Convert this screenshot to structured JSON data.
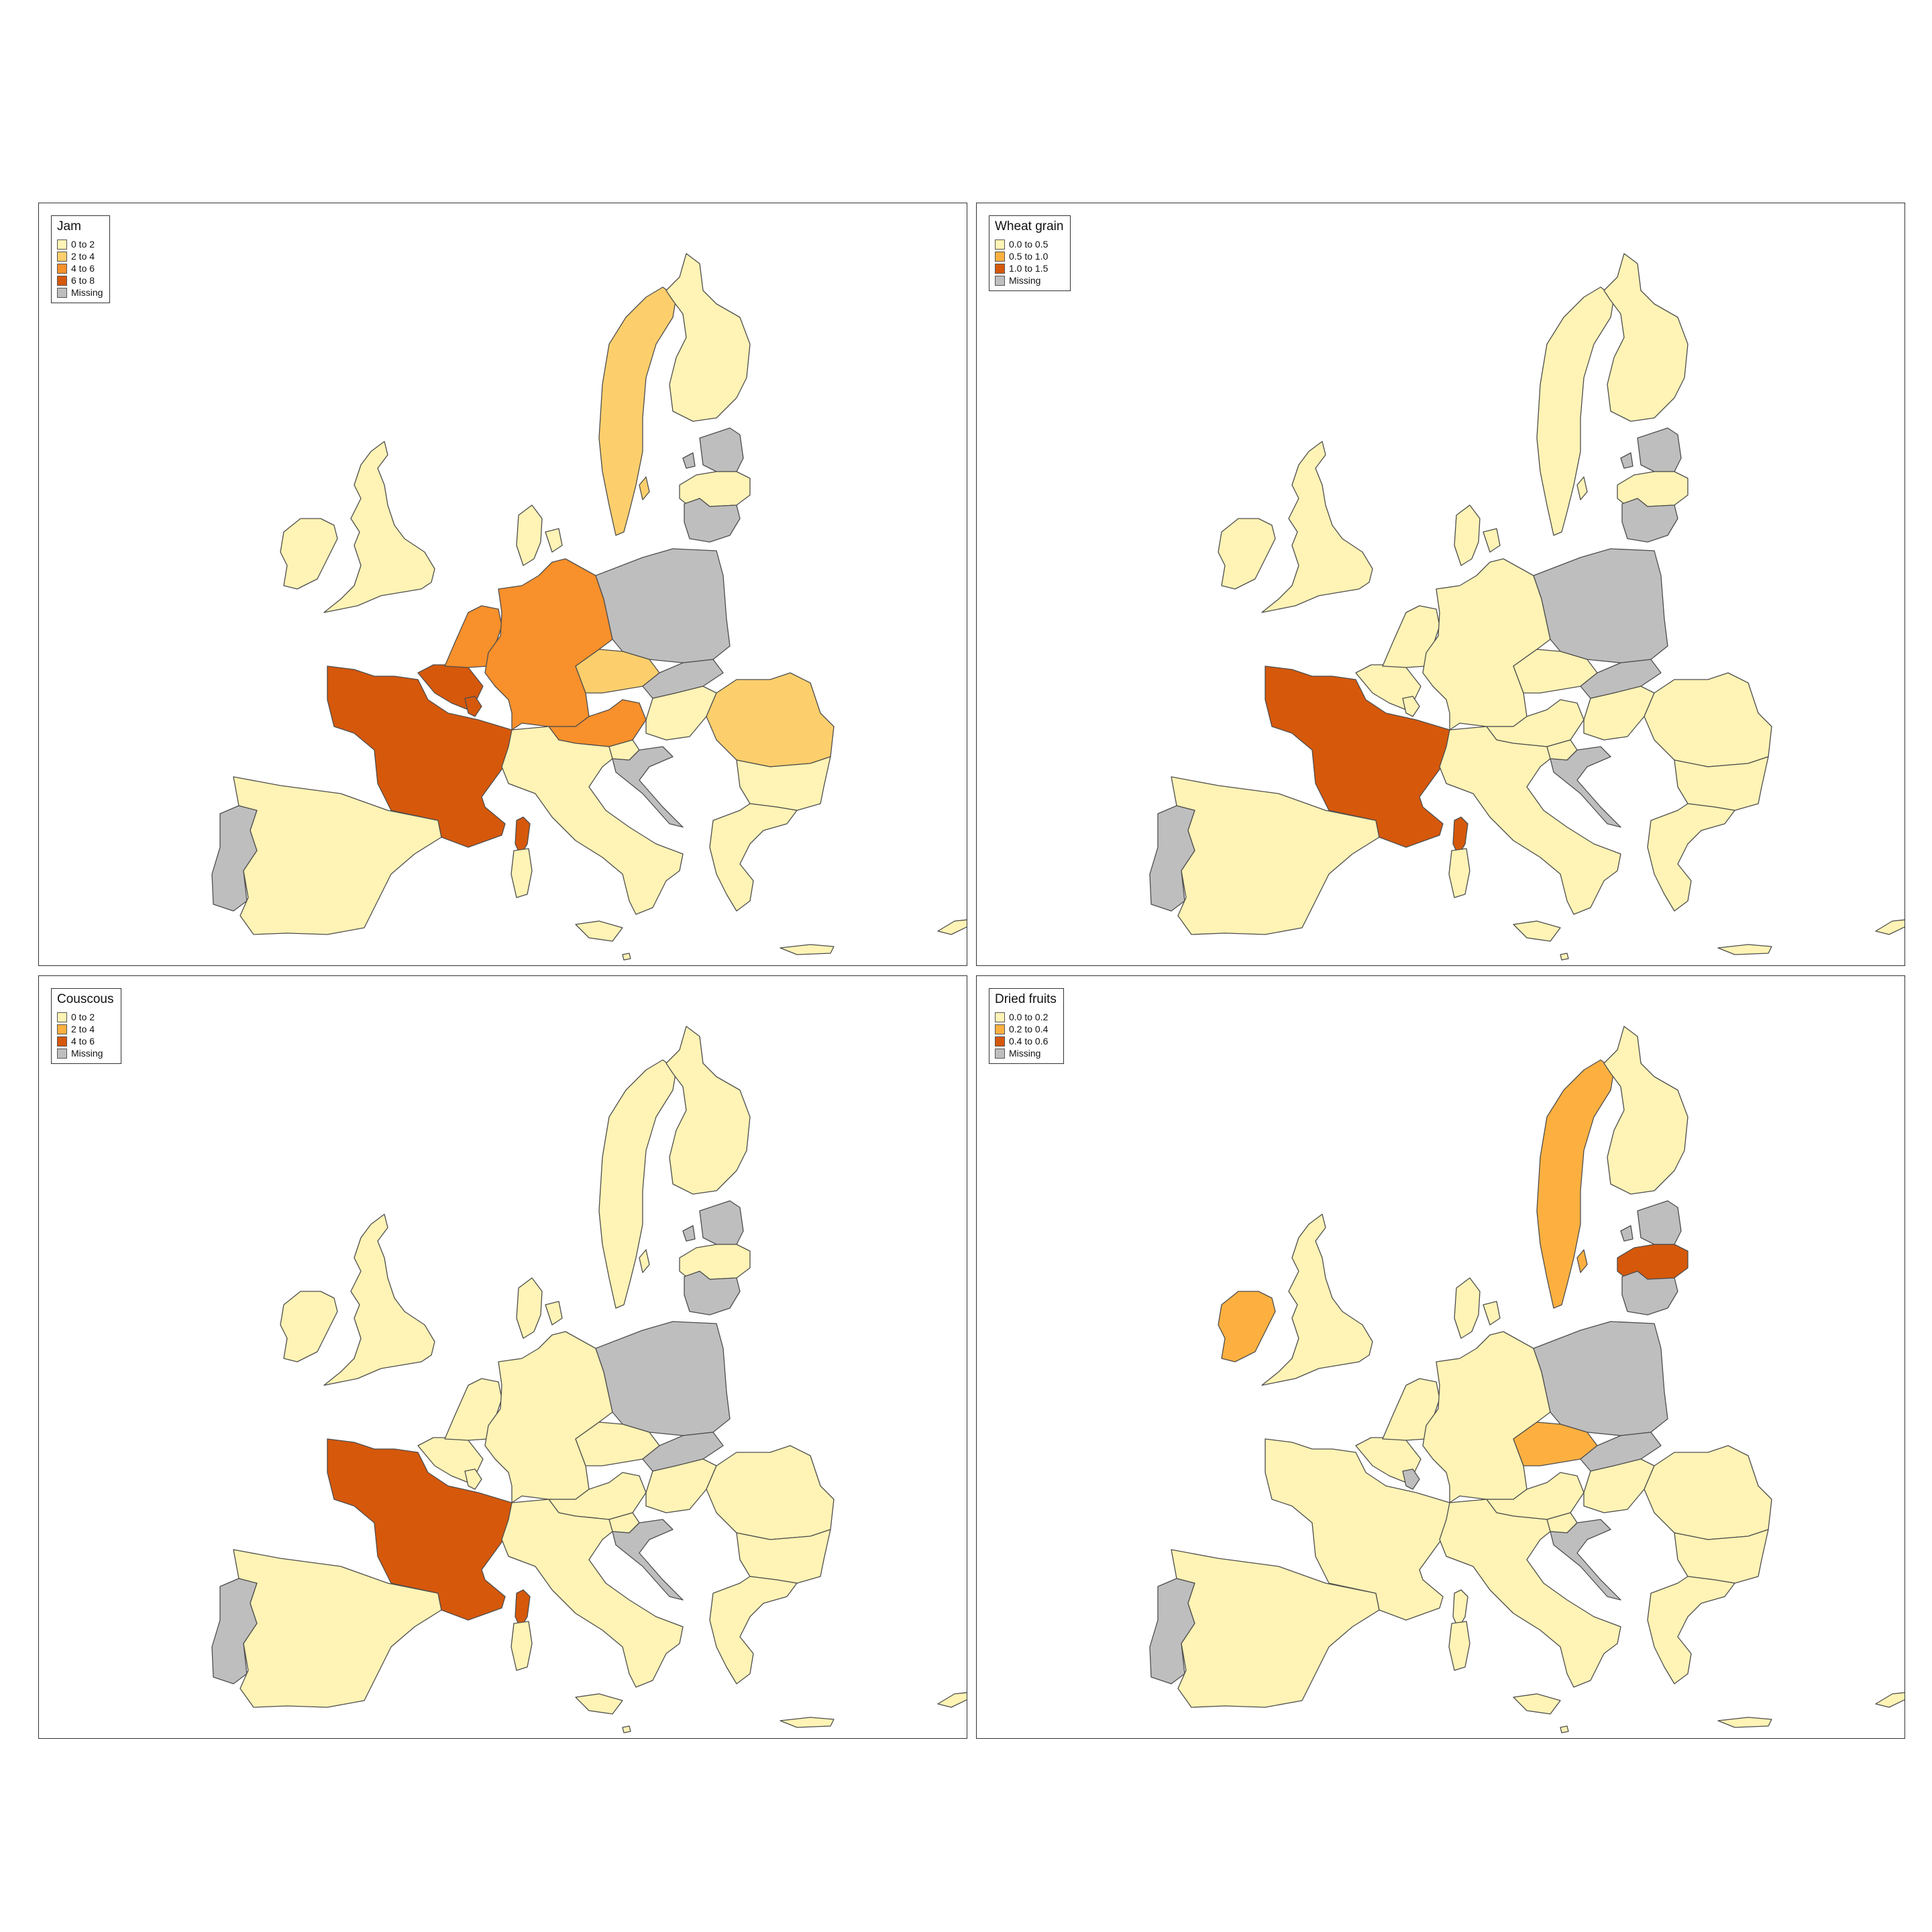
{
  "colors": {
    "c1": "#fff3b5",
    "c2": "#fdcf6c",
    "c3": "#f8902b",
    "c4": "#d6580b",
    "missing": "#bebebe",
    "border": "#4d4d4d"
  },
  "panels": [
    {
      "title": "Jam",
      "legend": [
        {
          "label": "0 to 2",
          "color": "#fff3b5"
        },
        {
          "label": "2 to 4",
          "color": "#fdcf6c"
        },
        {
          "label": "4 to 6",
          "color": "#f8902b"
        },
        {
          "label": "6 to 8",
          "color": "#d6580b"
        },
        {
          "label": "Missing",
          "color": "#bebebe"
        }
      ],
      "region_colors": {
        "fra": "#d6580b",
        "bel": "#d6580b",
        "lux": "#d6580b",
        "corsica": "#d6580b",
        "nld": "#f8902b",
        "deu": "#f8902b",
        "aut": "#f8902b",
        "swe": "#fdcf6c",
        "cze": "#fdcf6c",
        "rou": "#fdcf6c",
        "gotland": "#fdcf6c",
        "pol": "#bebebe",
        "est": "#bebebe",
        "lva": "#fff3b5",
        "ltu": "#bebebe",
        "svk": "#bebebe",
        "hrv": "#bebebe",
        "prt": "#bebebe"
      }
    },
    {
      "title": "Wheat grain",
      "legend": [
        {
          "label": "0.0 to 0.5",
          "color": "#fff3b5"
        },
        {
          "label": "0.5 to 1.0",
          "color": "#fdb040"
        },
        {
          "label": "1.0 to 1.5",
          "color": "#d6580b"
        },
        {
          "label": "Missing",
          "color": "#bebebe"
        }
      ],
      "region_colors": {
        "fra": "#d6580b",
        "corsica": "#d6580b",
        "pol": "#bebebe",
        "est": "#bebebe",
        "ltu": "#bebebe",
        "svk": "#bebebe",
        "hrv": "#bebebe",
        "prt": "#bebebe"
      }
    },
    {
      "title": "Couscous",
      "legend": [
        {
          "label": "0 to 2",
          "color": "#fff3b5"
        },
        {
          "label": "2 to 4",
          "color": "#fdb040"
        },
        {
          "label": "4 to 6",
          "color": "#d6580b"
        },
        {
          "label": "Missing",
          "color": "#bebebe"
        }
      ],
      "region_colors": {
        "fra": "#d6580b",
        "corsica": "#d6580b",
        "pol": "#bebebe",
        "est": "#bebebe",
        "ltu": "#bebebe",
        "svk": "#bebebe",
        "hrv": "#bebebe",
        "prt": "#bebebe"
      }
    },
    {
      "title": "Dried fruits",
      "legend": [
        {
          "label": "0.0 to 0.2",
          "color": "#fff3b5"
        },
        {
          "label": "0.2 to 0.4",
          "color": "#fdb040"
        },
        {
          "label": "0.4 to 0.6",
          "color": "#d6580b"
        },
        {
          "label": "Missing",
          "color": "#bebebe"
        }
      ],
      "region_colors": {
        "swe": "#fdb040",
        "irl": "#fdb040",
        "cze": "#fdb040",
        "gotland": "#fdb040",
        "lva": "#d6580b",
        "pol": "#bebebe",
        "est": "#bebebe",
        "ltu": "#bebebe",
        "svk": "#bebebe",
        "hrv": "#bebebe",
        "prt": "#bebebe",
        "lux": "#bebebe"
      }
    }
  ]
}
